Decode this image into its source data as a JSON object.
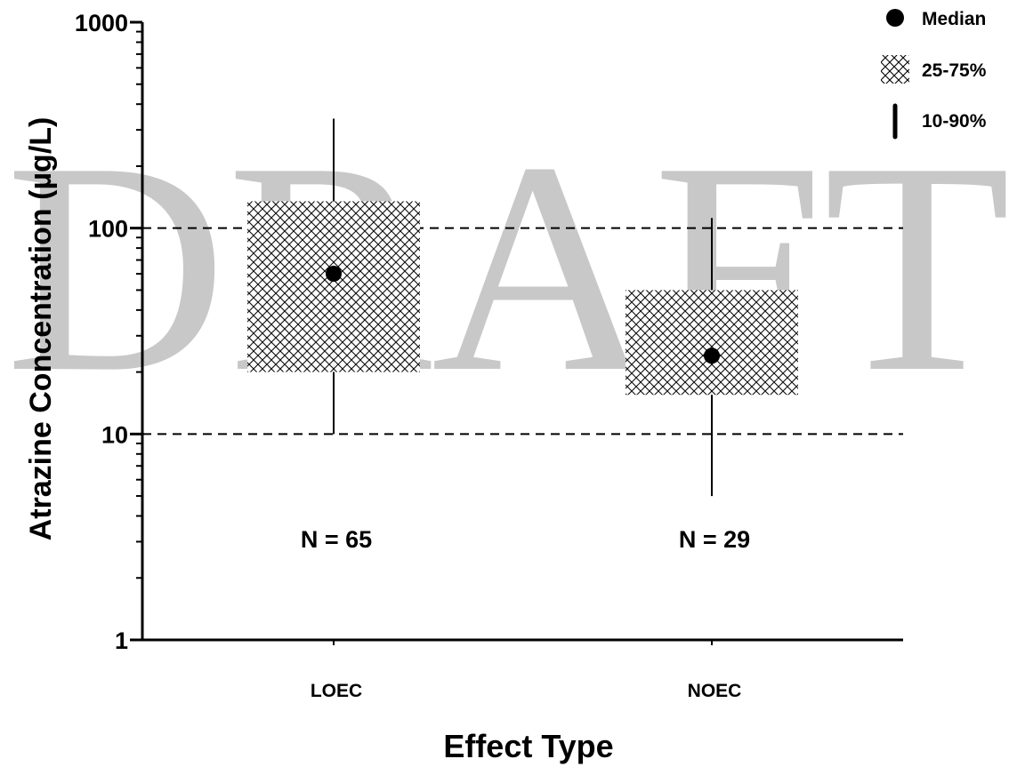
{
  "chart_data": {
    "type": "box",
    "ylabel": "Atrazine Concentration (µg/L)",
    "xlabel": "Effect Type",
    "yscale": "log",
    "ylim": [
      1,
      1000
    ],
    "y_ticks": [
      "1",
      "10",
      "100",
      "1000"
    ],
    "reference_lines": [
      10,
      100
    ],
    "categories": [
      "LOEC",
      "NOEC"
    ],
    "boxes": [
      {
        "category": "LOEC",
        "p10": 10,
        "p25": 20,
        "median": 60,
        "p75": 135,
        "p90": 340,
        "n_label": "N = 65"
      },
      {
        "category": "NOEC",
        "p10": 5,
        "p25": 15.5,
        "median": 24,
        "p75": 50,
        "p90": 112,
        "n_label": "N = 29"
      }
    ],
    "legend": [
      {
        "symbol": "dot",
        "label": "Median"
      },
      {
        "symbol": "crosshatch",
        "label": "25-75%"
      },
      {
        "symbol": "bar",
        "label": "10-90%"
      }
    ],
    "legend_position": "top-right",
    "watermark": "DRAFT"
  }
}
